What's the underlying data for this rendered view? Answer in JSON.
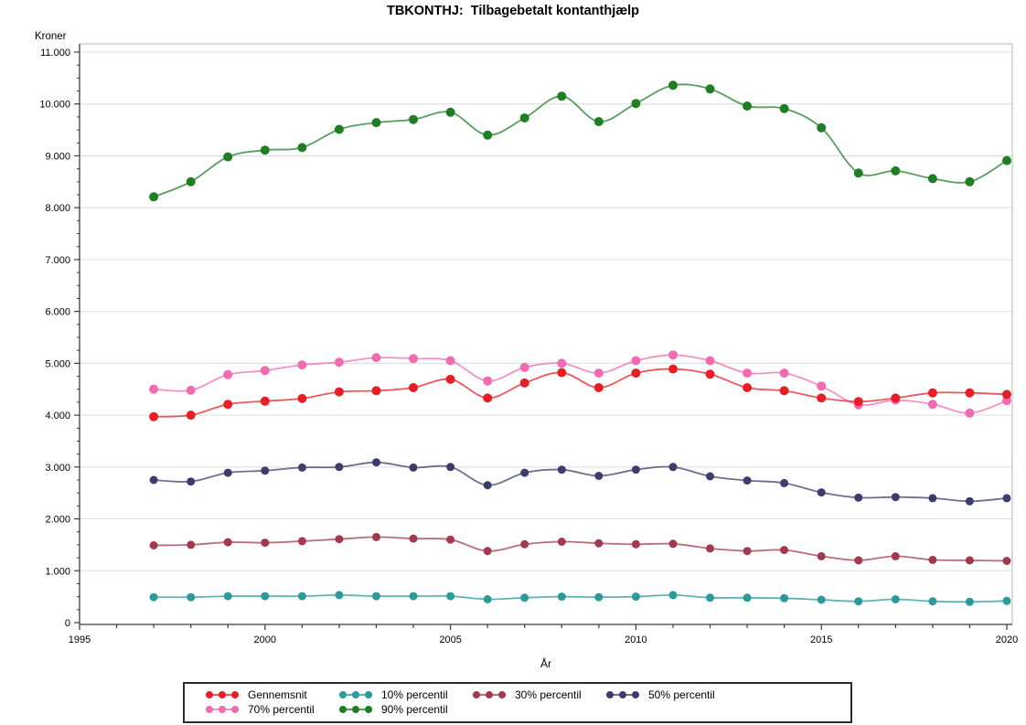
{
  "title": "TBKONTHJ:  Tilbagebetalt kontanthjælp",
  "chart_data": {
    "type": "line",
    "xlabel": "År",
    "ylabel": "Kroner",
    "xlim": [
      1995,
      2020.25
    ],
    "ylim": [
      0,
      11000
    ],
    "grid": "horizontal",
    "legend_position": "bottom",
    "x": [
      1997,
      1998,
      1999,
      2000,
      2001,
      2002,
      2003,
      2004,
      2005,
      2006,
      2007,
      2008,
      2009,
      2010,
      2011,
      2012,
      2013,
      2014,
      2015,
      2016,
      2017,
      2018,
      2019,
      2020
    ],
    "x_tick_years": [
      1995,
      1996,
      1997,
      1998,
      1999,
      2000,
      2001,
      2002,
      2003,
      2004,
      2005,
      2006,
      2007,
      2008,
      2009,
      2010,
      2011,
      2012,
      2013,
      2014,
      2015,
      2016,
      2017,
      2018,
      2019,
      2020
    ],
    "x_major_ticks": [
      1995,
      2000,
      2005,
      2010,
      2015,
      2020
    ],
    "x_tick_labels": [
      "1995",
      "2000",
      "2005",
      "2010",
      "2015",
      "2020"
    ],
    "y_major_step": 1000,
    "y_minor_step": 250,
    "y_tick_labels": [
      "0",
      "1.000",
      "2.000",
      "3.000",
      "4.000",
      "5.000",
      "6.000",
      "7.000",
      "8.000",
      "9.000",
      "10.000",
      "11.000"
    ],
    "series": [
      {
        "name": "Gennemsnit",
        "color": "#e61e25",
        "marker_r": 5,
        "values": [
          3970,
          4000,
          4210,
          4270,
          4320,
          4450,
          4470,
          4530,
          4690,
          4330,
          4620,
          4820,
          4530,
          4810,
          4890,
          4790,
          4530,
          4470,
          4330,
          4260,
          4330,
          4430,
          4430,
          4400
        ]
      },
      {
        "name": "10% percentil",
        "color": "#2a9a9a",
        "marker_r": 4.5,
        "values": [
          490,
          490,
          510,
          510,
          510,
          530,
          510,
          510,
          510,
          450,
          480,
          500,
          490,
          500,
          530,
          480,
          480,
          470,
          440,
          410,
          450,
          410,
          400,
          420
        ]
      },
      {
        "name": "30% percentil",
        "color": "#a2394f",
        "marker_r": 4.5,
        "values": [
          1490,
          1500,
          1550,
          1540,
          1570,
          1610,
          1650,
          1620,
          1600,
          1380,
          1510,
          1560,
          1530,
          1510,
          1520,
          1430,
          1380,
          1400,
          1280,
          1200,
          1280,
          1210,
          1200,
          1190
        ]
      },
      {
        "name": "50% percentil",
        "color": "#3d3c6e",
        "marker_r": 4.5,
        "values": [
          2750,
          2720,
          2890,
          2930,
          2990,
          3000,
          3090,
          2990,
          3000,
          2650,
          2890,
          2950,
          2830,
          2950,
          3000,
          2820,
          2740,
          2690,
          2510,
          2410,
          2420,
          2400,
          2340,
          2400
        ]
      },
      {
        "name": "70% percentil",
        "color": "#f26bb2",
        "marker_r": 5,
        "values": [
          4500,
          4480,
          4780,
          4860,
          4970,
          5020,
          5110,
          5090,
          5050,
          4660,
          4920,
          5000,
          4810,
          5050,
          5160,
          5050,
          4810,
          4810,
          4560,
          4200,
          4290,
          4210,
          4040,
          4280
        ]
      },
      {
        "name": "90% percentil",
        "color": "#1e7e24",
        "marker_r": 5,
        "values": [
          8210,
          8500,
          8980,
          9110,
          9160,
          9510,
          9640,
          9700,
          9840,
          9400,
          9730,
          10150,
          9660,
          10010,
          10360,
          10290,
          9960,
          9910,
          9540,
          8670,
          8710,
          8560,
          8500,
          8910
        ]
      }
    ],
    "colors": {
      "gridline": "#dcdcdc",
      "frame_light": "#b5b5b5",
      "axis_dark": "#3c3c3c"
    }
  }
}
